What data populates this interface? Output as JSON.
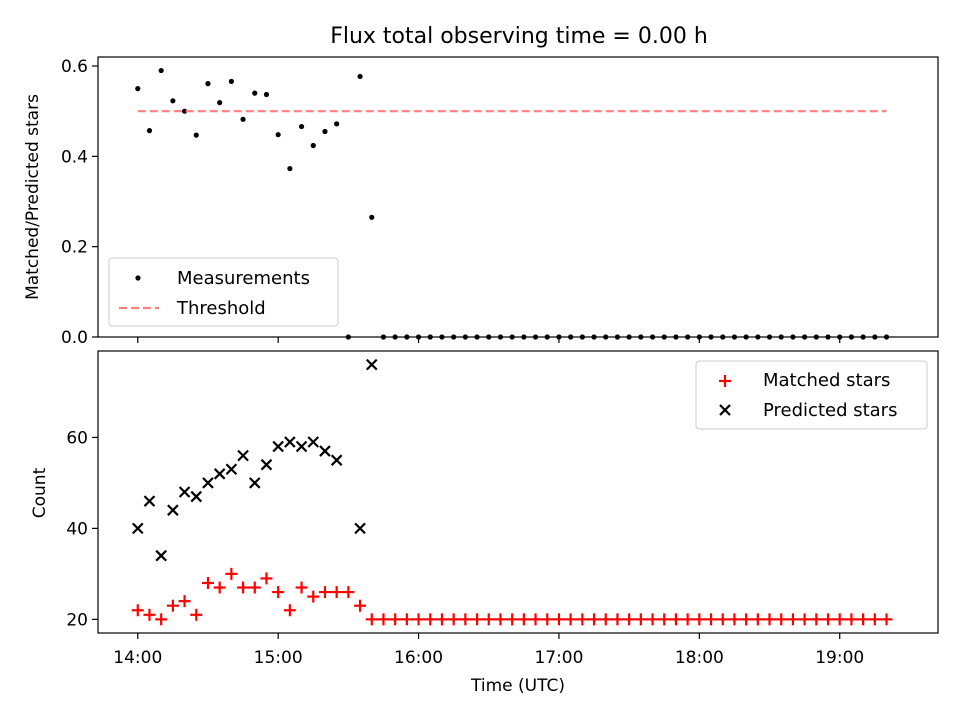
{
  "figure": {
    "title": "Flux total observing time = 0.00 h"
  },
  "chart_data": [
    {
      "type": "scatter",
      "title": "Flux total observing time = 0.00 h",
      "xlabel": "",
      "ylabel": "Matched/Predicted stars",
      "xlim": [
        "13:43",
        "19:42"
      ],
      "ylim": [
        0,
        0.62
      ],
      "yticks": [
        0.0,
        0.2,
        0.4,
        0.6
      ],
      "ytick_labels": [
        "0.0",
        "0.2",
        "0.4",
        "0.6"
      ],
      "legend_position": "lower-left",
      "series": [
        {
          "name": "Measurements",
          "marker": "dot",
          "color": "#000000",
          "x": [
            "14:00",
            "14:05",
            "14:10",
            "14:15",
            "14:20",
            "14:25",
            "14:30",
            "14:35",
            "14:40",
            "14:45",
            "14:50",
            "14:55",
            "15:00",
            "15:05",
            "15:10",
            "15:15",
            "15:20",
            "15:25",
            "15:30",
            "15:35",
            "15:40",
            "15:45",
            "15:50",
            "15:55",
            "16:00",
            "16:05",
            "16:10",
            "16:15",
            "16:20",
            "16:25",
            "16:30",
            "16:35",
            "16:40",
            "16:45",
            "16:50",
            "16:55",
            "17:00",
            "17:05",
            "17:10",
            "17:15",
            "17:20",
            "17:25",
            "17:30",
            "17:35",
            "17:40",
            "17:45",
            "17:50",
            "17:55",
            "18:00",
            "18:05",
            "18:10",
            "18:15",
            "18:20",
            "18:25",
            "18:30",
            "18:35",
            "18:40",
            "18:45",
            "18:50",
            "18:55",
            "19:00",
            "19:05",
            "19:10",
            "19:15",
            "19:20"
          ],
          "y": [
            0.55,
            0.457,
            0.59,
            0.523,
            0.5,
            0.447,
            0.561,
            0.519,
            0.566,
            0.482,
            0.54,
            0.537,
            0.448,
            0.373,
            0.466,
            0.424,
            0.455,
            0.472,
            0.0,
            0.577,
            0.265,
            0.0,
            0.0,
            0.0,
            0.0,
            0.0,
            0.0,
            0.0,
            0.0,
            0.0,
            0.0,
            0.0,
            0.0,
            0.0,
            0.0,
            0.0,
            0.0,
            0.0,
            0.0,
            0.0,
            0.0,
            0.0,
            0.0,
            0.0,
            0.0,
            0.0,
            0.0,
            0.0,
            0.0,
            0.0,
            0.0,
            0.0,
            0.0,
            0.0,
            0.0,
            0.0,
            0.0,
            0.0,
            0.0,
            0.0,
            0.0,
            0.0,
            0.0,
            0.0,
            0.0
          ]
        },
        {
          "name": "Threshold",
          "style": "dashed",
          "color": "#ff7f7f",
          "x": [
            "14:00",
            "19:20"
          ],
          "y": [
            0.5,
            0.5
          ]
        }
      ]
    },
    {
      "type": "scatter",
      "xlabel": "Time (UTC)",
      "ylabel": "Count",
      "xlim": [
        "13:43",
        "19:42"
      ],
      "ylim": [
        17,
        79
      ],
      "xticks": [
        "14:00",
        "15:00",
        "16:00",
        "17:00",
        "18:00",
        "19:00"
      ],
      "yticks": [
        20,
        40,
        60
      ],
      "ytick_labels": [
        "20",
        "40",
        "60"
      ],
      "legend_position": "upper-right",
      "series": [
        {
          "name": "Matched stars",
          "marker": "plus",
          "color": "#ff0000",
          "x": [
            "14:00",
            "14:05",
            "14:10",
            "14:15",
            "14:20",
            "14:25",
            "14:30",
            "14:35",
            "14:40",
            "14:45",
            "14:50",
            "14:55",
            "15:00",
            "15:05",
            "15:10",
            "15:15",
            "15:20",
            "15:25",
            "15:30",
            "15:35",
            "15:40",
            "15:45",
            "15:50",
            "15:55",
            "16:00",
            "16:05",
            "16:10",
            "16:15",
            "16:20",
            "16:25",
            "16:30",
            "16:35",
            "16:40",
            "16:45",
            "16:50",
            "16:55",
            "17:00",
            "17:05",
            "17:10",
            "17:15",
            "17:20",
            "17:25",
            "17:30",
            "17:35",
            "17:40",
            "17:45",
            "17:50",
            "17:55",
            "18:00",
            "18:05",
            "18:10",
            "18:15",
            "18:20",
            "18:25",
            "18:30",
            "18:35",
            "18:40",
            "18:45",
            "18:50",
            "18:55",
            "19:00",
            "19:05",
            "19:10",
            "19:15",
            "19:20"
          ],
          "y": [
            22,
            21,
            20,
            23,
            24,
            21,
            28,
            27,
            30,
            27,
            27,
            29,
            26,
            22,
            27,
            25,
            26,
            26,
            26,
            23,
            20,
            20,
            20,
            20,
            20,
            20,
            20,
            20,
            20,
            20,
            20,
            20,
            20,
            20,
            20,
            20,
            20,
            20,
            20,
            20,
            20,
            20,
            20,
            20,
            20,
            20,
            20,
            20,
            20,
            20,
            20,
            20,
            20,
            20,
            20,
            20,
            20,
            20,
            20,
            20,
            20,
            20,
            20,
            20,
            20
          ]
        },
        {
          "name": "Predicted stars",
          "marker": "x",
          "color": "#000000",
          "x": [
            "14:00",
            "14:05",
            "14:10",
            "14:15",
            "14:20",
            "14:25",
            "14:30",
            "14:35",
            "14:40",
            "14:45",
            "14:50",
            "14:55",
            "15:00",
            "15:05",
            "15:10",
            "15:15",
            "15:20",
            "15:25",
            "15:35",
            "15:40"
          ],
          "y": [
            40,
            46,
            34,
            44,
            48,
            47,
            50,
            52,
            53,
            56,
            50,
            54,
            58,
            59,
            58,
            59,
            57,
            55,
            40,
            76
          ]
        }
      ]
    }
  ]
}
